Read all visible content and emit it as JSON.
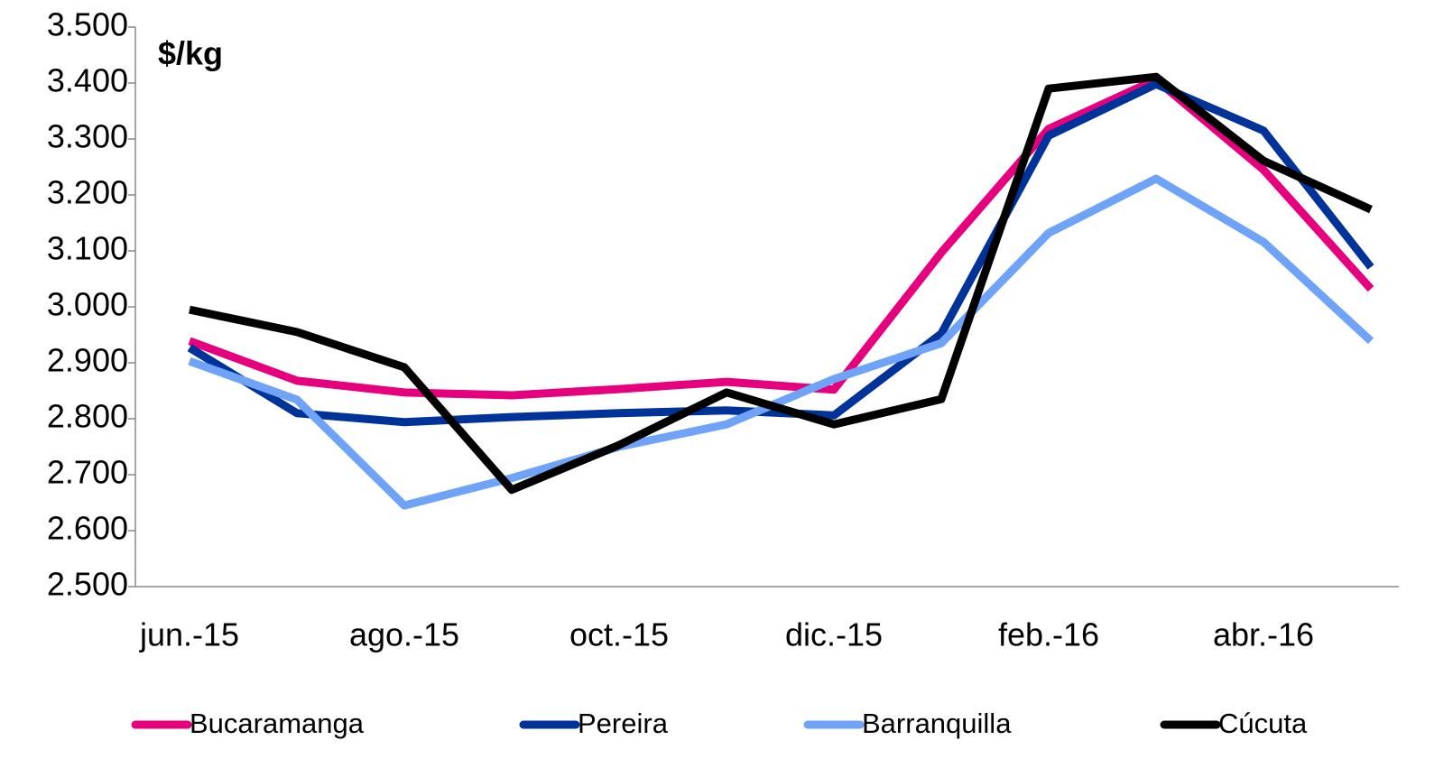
{
  "chart_data": {
    "type": "line",
    "title": "$/kg",
    "categories": [
      "jun.-15",
      null,
      "ago.-15",
      null,
      "oct.-15",
      null,
      "dic.-15",
      null,
      "feb.-16",
      null,
      "abr.-16",
      null
    ],
    "series": [
      {
        "name": "Bucaramanga",
        "color": "#e6007e",
        "values": [
          2939,
          2868,
          2847,
          2842,
          2853,
          2866,
          2852,
          3097,
          3318,
          3406,
          3245,
          3032
        ]
      },
      {
        "name": "Pereira",
        "color": "#003399",
        "values": [
          2927,
          2810,
          2794,
          2803,
          2810,
          2815,
          2806,
          2952,
          3306,
          3398,
          3315,
          3071
        ]
      },
      {
        "name": "Barranquilla",
        "color": "#6fa3f7",
        "values": [
          2903,
          2834,
          2645,
          2694,
          2750,
          2790,
          2871,
          2935,
          3132,
          3229,
          3116,
          2939
        ]
      },
      {
        "name": "Cúcuta",
        "color": "#000000",
        "values": [
          2995,
          2955,
          2892,
          2673,
          2753,
          2847,
          2790,
          2835,
          3390,
          3411,
          3261,
          3174
        ]
      }
    ],
    "ylim": [
      2500,
      3500
    ],
    "yticks": [
      {
        "value": 2500,
        "label": "2.500"
      },
      {
        "value": 2600,
        "label": "2.600"
      },
      {
        "value": 2700,
        "label": "2.700"
      },
      {
        "value": 2800,
        "label": "2.800"
      },
      {
        "value": 2900,
        "label": "2.900"
      },
      {
        "value": 3000,
        "label": "3.000"
      },
      {
        "value": 3100,
        "label": "3.100"
      },
      {
        "value": 3200,
        "label": "3.200"
      },
      {
        "value": 3300,
        "label": "3.300"
      },
      {
        "value": 3400,
        "label": "3.400"
      },
      {
        "value": 3500,
        "label": "3.500"
      }
    ],
    "legend": "bottom"
  }
}
